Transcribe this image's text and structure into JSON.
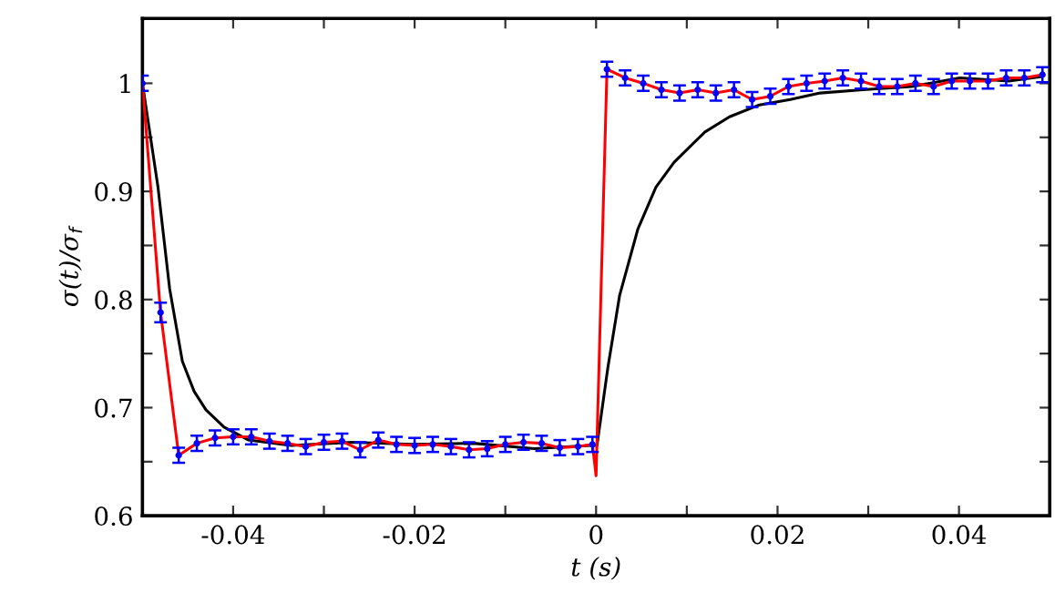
{
  "chart_data": {
    "type": "line",
    "xlabel": "t (s)",
    "ylabel": "σ(t)/σ$_{f}$",
    "xlim": [
      -0.05,
      0.05
    ],
    "ylim": [
      0.6,
      1.06
    ],
    "xticks": [
      -0.04,
      {
        "value": -0.03,
        "label": null
      },
      -0.02,
      {
        "value": -0.01,
        "label": null
      },
      0,
      {
        "value": 0.01,
        "label": null
      },
      0.02,
      {
        "value": 0.03,
        "label": null
      },
      0.04
    ],
    "yticks": [
      0.6,
      {
        "value": 0.65,
        "label": null
      },
      0.7,
      {
        "value": 0.75,
        "label": null
      },
      0.8,
      {
        "value": 0.85,
        "label": null
      },
      0.9,
      {
        "value": 0.95,
        "label": null
      },
      1
    ],
    "grid": false,
    "series": [
      {
        "color": "#000000",
        "x": [
          -0.05,
          -0.0483,
          -0.047,
          -0.0456,
          -0.0443,
          -0.043,
          -0.041,
          -0.0383,
          -0.0336,
          -0.0269,
          -0.0202,
          -0.0135,
          -0.0068,
          -0.0007,
          0.0001,
          0.0013,
          0.0026,
          0.0046,
          0.0066,
          0.0086,
          0.012,
          0.0147,
          0.018,
          0.0214,
          0.0247,
          0.0294,
          0.0348,
          0.0401,
          0.0455,
          0.049
        ],
        "values": [
          1.0,
          0.905,
          0.81,
          0.743,
          0.715,
          0.698,
          0.682,
          0.67,
          0.665,
          0.668,
          0.666,
          0.667,
          0.662,
          0.665,
          0.665,
          0.737,
          0.804,
          0.865,
          0.904,
          0.927,
          0.955,
          0.969,
          0.98,
          0.985,
          0.991,
          0.994,
          0.997,
          1.005,
          1.002,
          1.006
        ]
      },
      {
        "type": "line",
        "color": "#ff0000",
        "x": [
          -0.05,
          -0.048,
          -0.046,
          -0.044,
          -0.042,
          -0.04,
          -0.038,
          -0.036,
          -0.034,
          -0.032,
          -0.03,
          -0.028,
          -0.026,
          -0.024,
          -0.022,
          -0.02,
          -0.018,
          -0.016,
          -0.014,
          -0.012,
          -0.01,
          -0.008,
          -0.006,
          -0.004,
          -0.002,
          -0.0004,
          0.0,
          0.0012,
          0.0032,
          0.0052,
          0.0072,
          0.0092,
          0.0112,
          0.0132,
          0.0152,
          0.0172,
          0.0192,
          0.0212,
          0.0232,
          0.0252,
          0.0272,
          0.0292,
          0.0312,
          0.0332,
          0.0352,
          0.0372,
          0.0392,
          0.0412,
          0.0432,
          0.0452,
          0.0472,
          0.0492
        ],
        "values": [
          1.0,
          0.788,
          0.656,
          0.667,
          0.672,
          0.673,
          0.673,
          0.669,
          0.667,
          0.664,
          0.668,
          0.669,
          0.661,
          0.67,
          0.666,
          0.665,
          0.666,
          0.664,
          0.661,
          0.662,
          0.666,
          0.668,
          0.667,
          0.663,
          0.664,
          0.666,
          0.637,
          1.013,
          1.005,
          1.0,
          0.994,
          0.991,
          0.994,
          0.991,
          0.994,
          0.985,
          0.988,
          0.997,
          1.0,
          1.002,
          1.005,
          1.002,
          0.997,
          0.997,
          1.0,
          0.997,
          1.002,
          1.002,
          1.002,
          1.005,
          1.005,
          1.008
        ]
      },
      {
        "type": "scatter",
        "color": "#0000ff",
        "marker": "circle",
        "x": [
          -0.05,
          -0.048,
          -0.046,
          -0.044,
          -0.042,
          -0.04,
          -0.038,
          -0.036,
          -0.034,
          -0.032,
          -0.03,
          -0.028,
          -0.026,
          -0.024,
          -0.022,
          -0.02,
          -0.018,
          -0.016,
          -0.014,
          -0.012,
          -0.01,
          -0.008,
          -0.006,
          -0.004,
          -0.002,
          -0.0004,
          0.0012,
          0.0032,
          0.0052,
          0.0072,
          0.0092,
          0.0112,
          0.0132,
          0.0152,
          0.0172,
          0.0192,
          0.0212,
          0.0232,
          0.0252,
          0.0272,
          0.0292,
          0.0312,
          0.0332,
          0.0352,
          0.0372,
          0.0392,
          0.0412,
          0.0432,
          0.0452,
          0.0472,
          0.0492
        ],
        "values": [
          1.0,
          0.788,
          0.656,
          0.667,
          0.672,
          0.673,
          0.673,
          0.669,
          0.667,
          0.664,
          0.668,
          0.669,
          0.661,
          0.67,
          0.666,
          0.665,
          0.666,
          0.664,
          0.661,
          0.662,
          0.666,
          0.668,
          0.667,
          0.663,
          0.664,
          0.666,
          1.013,
          1.005,
          1.0,
          0.994,
          0.991,
          0.994,
          0.991,
          0.994,
          0.985,
          0.988,
          0.997,
          1.0,
          1.002,
          1.005,
          1.002,
          0.997,
          0.997,
          1.0,
          0.997,
          1.002,
          1.002,
          1.002,
          1.005,
          1.005,
          1.008
        ],
        "errors": [
          0.007,
          0.009,
          0.007,
          0.007,
          0.007,
          0.007,
          0.007,
          0.007,
          0.007,
          0.007,
          0.007,
          0.007,
          0.007,
          0.007,
          0.007,
          0.007,
          0.007,
          0.007,
          0.007,
          0.007,
          0.007,
          0.007,
          0.007,
          0.007,
          0.007,
          0.007,
          0.007,
          0.007,
          0.007,
          0.007,
          0.007,
          0.007,
          0.007,
          0.007,
          0.007,
          0.007,
          0.007,
          0.007,
          0.007,
          0.007,
          0.007,
          0.007,
          0.007,
          0.007,
          0.007,
          0.007,
          0.007,
          0.007,
          0.007,
          0.007,
          0.007
        ]
      }
    ]
  }
}
